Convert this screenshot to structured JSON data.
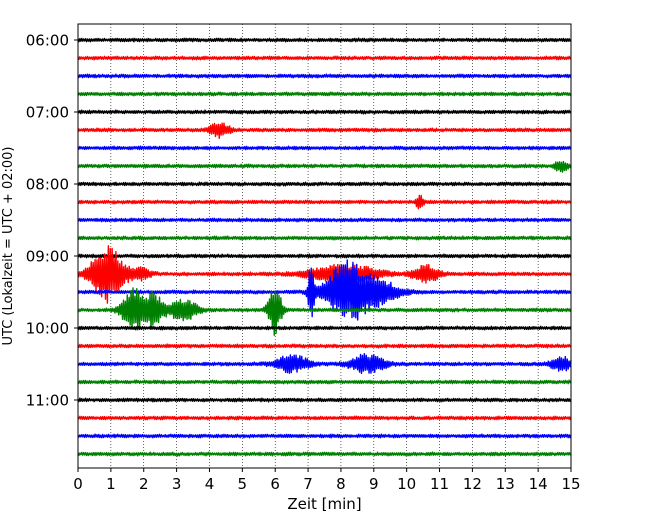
{
  "chart_data": {
    "type": "line",
    "subtype": "helicorder",
    "title": "",
    "xlabel": "Zeit  [min]",
    "ylabel": "UTC (Lokalzeit = UTC + 02:00)",
    "xlim": [
      0,
      15
    ],
    "x_ticks": [
      0,
      1,
      2,
      3,
      4,
      5,
      6,
      7,
      8,
      9,
      10,
      11,
      12,
      13,
      14,
      15
    ],
    "x_tick_labels": [
      "0",
      "1",
      "2",
      "3",
      "4",
      "5",
      "6",
      "7",
      "8",
      "9",
      "10",
      "11",
      "12",
      "13",
      "14",
      "15"
    ],
    "x_grid": "dotted vertical lines at each minute",
    "trace_interval_minutes": 15,
    "y_tick_labels": [
      "06:00",
      "07:00",
      "08:00",
      "09:00",
      "10:00",
      "11:00"
    ],
    "trace_color_cycle": [
      "#000000",
      "#ff0000",
      "#0000ff",
      "#008000"
    ],
    "traces": [
      {
        "start": "06:00",
        "color": "#000000",
        "bursts": []
      },
      {
        "start": "06:15",
        "color": "#ff0000",
        "bursts": []
      },
      {
        "start": "06:30",
        "color": "#0000ff",
        "bursts": []
      },
      {
        "start": "06:45",
        "color": "#008000",
        "bursts": []
      },
      {
        "start": "07:00",
        "color": "#000000",
        "bursts": []
      },
      {
        "start": "07:15",
        "color": "#ff0000",
        "bursts": [
          {
            "t": 4.3,
            "amp": 0.25,
            "dur": 0.3
          }
        ]
      },
      {
        "start": "07:30",
        "color": "#0000ff",
        "bursts": []
      },
      {
        "start": "07:45",
        "color": "#008000",
        "bursts": [
          {
            "t": 14.7,
            "amp": 0.2,
            "dur": 0.2
          }
        ]
      },
      {
        "start": "08:00",
        "color": "#000000",
        "bursts": []
      },
      {
        "start": "08:15",
        "color": "#ff0000",
        "bursts": [
          {
            "t": 10.4,
            "amp": 0.3,
            "dur": 0.1
          }
        ]
      },
      {
        "start": "08:30",
        "color": "#0000ff",
        "bursts": []
      },
      {
        "start": "08:45",
        "color": "#008000",
        "bursts": []
      },
      {
        "start": "09:00",
        "color": "#000000",
        "bursts": []
      },
      {
        "start": "09:15",
        "color": "#ff0000",
        "bursts": [
          {
            "t": 0.9,
            "amp": 1.0,
            "dur": 0.5
          },
          {
            "t": 1.9,
            "amp": 0.2,
            "dur": 0.3
          },
          {
            "t": 8.1,
            "amp": 0.35,
            "dur": 1.0
          },
          {
            "t": 10.6,
            "amp": 0.3,
            "dur": 0.4
          }
        ]
      },
      {
        "start": "09:30",
        "color": "#0000ff",
        "bursts": [
          {
            "t": 7.1,
            "amp": 0.9,
            "dur": 0.1
          },
          {
            "t": 8.1,
            "amp": 1.0,
            "dur": 0.6
          },
          {
            "t": 9.0,
            "amp": 0.5,
            "dur": 0.7
          }
        ]
      },
      {
        "start": "09:45",
        "color": "#008000",
        "bursts": [
          {
            "t": 1.7,
            "amp": 0.8,
            "dur": 0.35
          },
          {
            "t": 2.3,
            "amp": 0.6,
            "dur": 0.3
          },
          {
            "t": 3.2,
            "amp": 0.4,
            "dur": 0.4
          },
          {
            "t": 6.0,
            "amp": 0.9,
            "dur": 0.2
          }
        ]
      },
      {
        "start": "10:00",
        "color": "#000000",
        "bursts": []
      },
      {
        "start": "10:15",
        "color": "#ff0000",
        "bursts": []
      },
      {
        "start": "10:30",
        "color": "#0000ff",
        "bursts": [
          {
            "t": 6.5,
            "amp": 0.3,
            "dur": 0.5
          },
          {
            "t": 8.8,
            "amp": 0.35,
            "dur": 0.5
          },
          {
            "t": 14.7,
            "amp": 0.25,
            "dur": 0.3
          }
        ]
      },
      {
        "start": "10:45",
        "color": "#008000",
        "bursts": []
      },
      {
        "start": "11:00",
        "color": "#000000",
        "bursts": []
      },
      {
        "start": "11:15",
        "color": "#ff0000",
        "bursts": []
      },
      {
        "start": "11:30",
        "color": "#0000ff",
        "bursts": []
      },
      {
        "start": "11:45",
        "color": "#008000",
        "bursts": []
      }
    ]
  }
}
